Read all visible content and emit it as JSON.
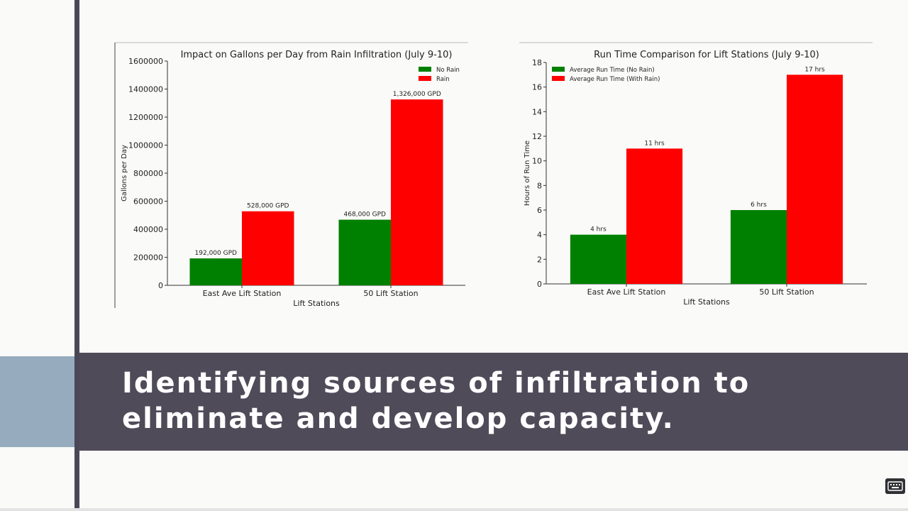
{
  "slide": {
    "caption": "Identifying sources of infiltration to eliminate and develop capacity."
  },
  "colors": {
    "no_rain": "#008000",
    "rain": "#ff0000",
    "banner": "#4f4b59",
    "left_block": "#96abbe"
  },
  "chart_data": [
    {
      "type": "bar",
      "title": "Impact on Gallons per Day from Rain Infiltration (July 9-10)",
      "xlabel": "Lift Stations",
      "ylabel": "Gallons per Day",
      "categories": [
        "East Ave Lift Station",
        "50 Lift Station"
      ],
      "series": [
        {
          "name": "No Rain",
          "color": "#008000",
          "values": [
            192000,
            468000
          ],
          "labels": [
            "192,000 GPD",
            "468,000 GPD"
          ]
        },
        {
          "name": "Rain",
          "color": "#ff0000",
          "values": [
            528000,
            1326000
          ],
          "labels": [
            "528,000 GPD",
            "1,326,000 GPD"
          ]
        }
      ],
      "ylim": [
        0,
        1600000
      ],
      "yticks": [
        0,
        200000,
        400000,
        600000,
        800000,
        1000000,
        1200000,
        1400000,
        1600000
      ],
      "legend": "top-right"
    },
    {
      "type": "bar",
      "title": "Run Time Comparison for Lift Stations (July 9-10)",
      "xlabel": "Lift Stations",
      "ylabel": "Hours of Run Time",
      "categories": [
        "East Ave Lift Station",
        "50 Lift Station"
      ],
      "series": [
        {
          "name": "Average Run Time (No Rain)",
          "color": "#008000",
          "values": [
            4,
            6
          ],
          "labels": [
            "4 hrs",
            "6 hrs"
          ]
        },
        {
          "name": "Average Run Time (With Rain)",
          "color": "#ff0000",
          "values": [
            11,
            17
          ],
          "labels": [
            "11 hrs",
            "17 hrs"
          ]
        }
      ],
      "ylim": [
        0,
        18
      ],
      "yticks": [
        0,
        2,
        4,
        6,
        8,
        10,
        12,
        14,
        16,
        18
      ],
      "legend": "top-left"
    }
  ],
  "controls": {
    "keyboard_icon": "keyboard-icon"
  }
}
